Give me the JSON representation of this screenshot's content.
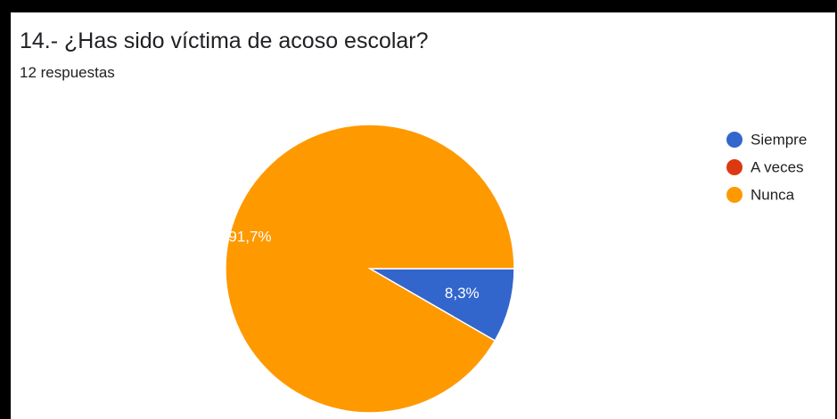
{
  "header": {
    "title": "14.- ¿Has sido víctima de acoso escolar?",
    "responses": "12 respuestas"
  },
  "chart_data": {
    "type": "pie",
    "categories": [
      "Siempre",
      "A veces",
      "Nunca"
    ],
    "values": [
      1,
      0,
      11
    ],
    "percent_labels": [
      "8,3%",
      "",
      "91,7%"
    ],
    "colors": [
      "#3366cc",
      "#dc3912",
      "#ff9900"
    ],
    "legend_position": "right"
  }
}
